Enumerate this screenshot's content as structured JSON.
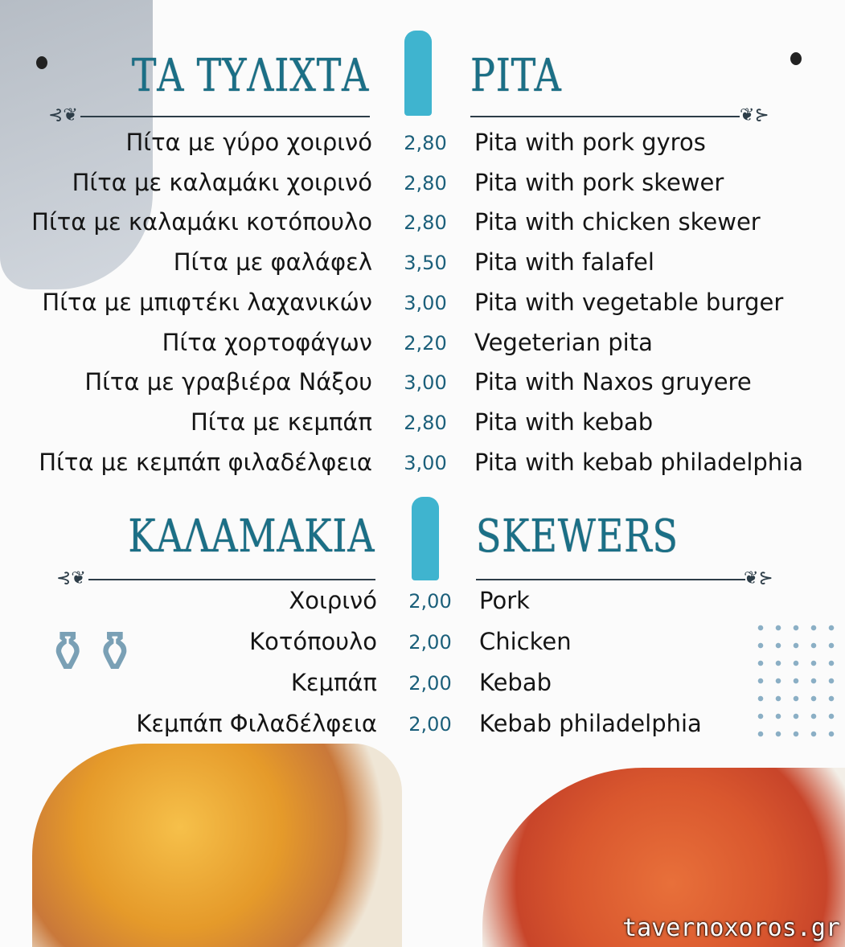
{
  "section1": {
    "title_gr": "ΤΑ ΤΥΛΙΧΤΑ",
    "title_en": "PITA",
    "items": [
      {
        "gr": "Πίτα με γύρο χοιρινό",
        "price": "2,80",
        "en": "Pita with pork gyros"
      },
      {
        "gr": "Πίτα με καλαμάκι χοιρινό",
        "price": "2,80",
        "en": "Pita with pork skewer"
      },
      {
        "gr": "Πίτα με καλαμάκι κοτόπουλο",
        "price": "2,80",
        "en": "Pita with chicken skewer"
      },
      {
        "gr": "Πίτα με φαλάφελ",
        "price": "3,50",
        "en": "Pita with falafel"
      },
      {
        "gr": "Πίτα με μπιφτέκι λαχανικών",
        "price": "3,00",
        "en": "Pita with vegetable burger"
      },
      {
        "gr": "Πίτα χορτοφάγων",
        "price": "2,20",
        "en": "Vegeterian pita"
      },
      {
        "gr": "Πίτα με γραβιέρα Νάξου",
        "price": "3,00",
        "en": "Pita with Naxos gruyere"
      },
      {
        "gr": "Πίτα με κεμπάπ",
        "price": "2,80",
        "en": "Pita with kebab"
      },
      {
        "gr": "Πίτα με κεμπάπ φιλαδέλφεια",
        "price": "3,00",
        "en": "Pita with kebab philadelphia"
      }
    ]
  },
  "section2": {
    "title_gr": "ΚΑΛΑΜΑΚΙΑ",
    "title_en": "SKEWERS",
    "items": [
      {
        "gr": "Χοιρινό",
        "price": "2,00",
        "en": "Pork"
      },
      {
        "gr": "Κοτόπουλο",
        "price": "2,00",
        "en": "Chicken"
      },
      {
        "gr": "Κεμπάπ",
        "price": "2,00",
        "en": "Kebab"
      },
      {
        "gr": "Κεμπάπ Φιλαδέλφεια",
        "price": "2,00",
        "en": "Kebab philadelphia"
      }
    ]
  },
  "watermark": "tavernoxoros.gr",
  "colors": {
    "title": "#1b6f86",
    "shaker": "#3fb4cf",
    "price": "#1b5f7a"
  }
}
